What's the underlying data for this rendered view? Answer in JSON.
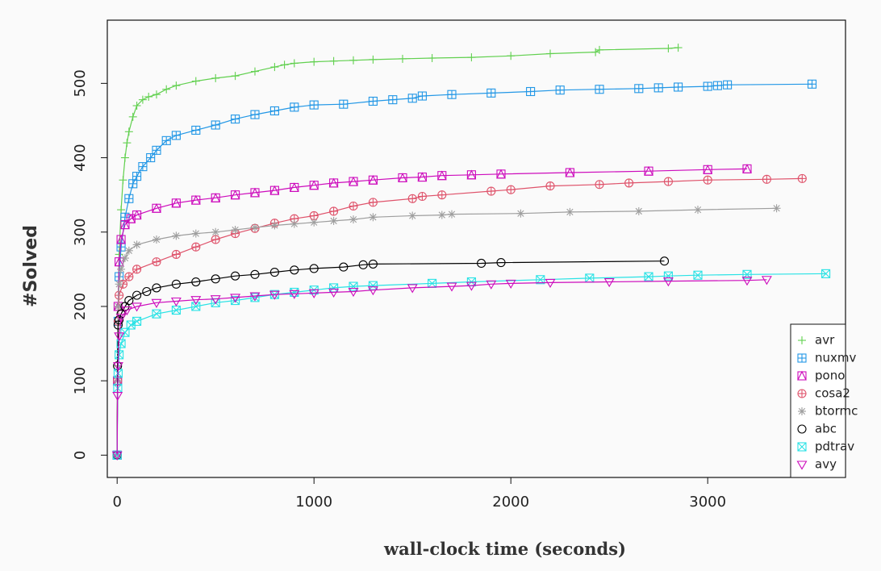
{
  "chart_data": {
    "type": "scatter",
    "xlabel": "wall-clock time (seconds)",
    "ylabel": "#Solved",
    "xlim": [
      -50,
      3700
    ],
    "ylim": [
      -30,
      585
    ],
    "xticks": [
      0,
      1000,
      2000,
      3000
    ],
    "yticks": [
      0,
      100,
      200,
      300,
      400,
      500
    ],
    "grid": false,
    "legend_position": "bottom-right",
    "series": [
      {
        "name": "avr",
        "color": "#61d04f",
        "marker": "plus",
        "points": [
          [
            0,
            0
          ],
          [
            2,
            120
          ],
          [
            5,
            200
          ],
          [
            10,
            270
          ],
          [
            20,
            330
          ],
          [
            30,
            370
          ],
          [
            40,
            400
          ],
          [
            50,
            420
          ],
          [
            60,
            435
          ],
          [
            80,
            455
          ],
          [
            100,
            470
          ],
          [
            130,
            478
          ],
          [
            160,
            482
          ],
          [
            200,
            485
          ],
          [
            250,
            492
          ],
          [
            300,
            497
          ],
          [
            400,
            503
          ],
          [
            500,
            507
          ],
          [
            600,
            510
          ],
          [
            700,
            516
          ],
          [
            800,
            522
          ],
          [
            850,
            525
          ],
          [
            900,
            527
          ],
          [
            1000,
            529
          ],
          [
            1100,
            530
          ],
          [
            1200,
            531
          ],
          [
            1300,
            532
          ],
          [
            1450,
            533
          ],
          [
            1600,
            534
          ],
          [
            1800,
            535
          ],
          [
            2000,
            537
          ],
          [
            2200,
            540
          ],
          [
            2430,
            542
          ],
          [
            2450,
            545
          ],
          [
            2800,
            547
          ],
          [
            2850,
            548
          ]
        ]
      },
      {
        "name": "nuxmv",
        "color": "#2297e6",
        "marker": "boxplus",
        "points": [
          [
            0,
            0
          ],
          [
            2,
            100
          ],
          [
            5,
            180
          ],
          [
            10,
            240
          ],
          [
            20,
            280
          ],
          [
            40,
            320
          ],
          [
            60,
            345
          ],
          [
            80,
            365
          ],
          [
            100,
            375
          ],
          [
            130,
            388
          ],
          [
            170,
            400
          ],
          [
            200,
            410
          ],
          [
            250,
            423
          ],
          [
            300,
            430
          ],
          [
            400,
            437
          ],
          [
            500,
            444
          ],
          [
            600,
            452
          ],
          [
            700,
            458
          ],
          [
            800,
            463
          ],
          [
            900,
            468
          ],
          [
            1000,
            471
          ],
          [
            1150,
            472
          ],
          [
            1300,
            476
          ],
          [
            1400,
            478
          ],
          [
            1500,
            480
          ],
          [
            1550,
            483
          ],
          [
            1700,
            485
          ],
          [
            1900,
            487
          ],
          [
            2100,
            489
          ],
          [
            2250,
            491
          ],
          [
            2450,
            492
          ],
          [
            2650,
            493
          ],
          [
            2750,
            494
          ],
          [
            2850,
            495
          ],
          [
            3000,
            496
          ],
          [
            3050,
            497
          ],
          [
            3100,
            498
          ],
          [
            3530,
            499
          ]
        ]
      },
      {
        "name": "pono",
        "color": "#cd0bbc",
        "marker": "boxtri",
        "points": [
          [
            0,
            0
          ],
          [
            2,
            100
          ],
          [
            5,
            200
          ],
          [
            10,
            260
          ],
          [
            20,
            290
          ],
          [
            40,
            310
          ],
          [
            70,
            318
          ],
          [
            100,
            323
          ],
          [
            200,
            332
          ],
          [
            300,
            339
          ],
          [
            400,
            343
          ],
          [
            500,
            346
          ],
          [
            600,
            350
          ],
          [
            700,
            353
          ],
          [
            800,
            356
          ],
          [
            900,
            360
          ],
          [
            1000,
            363
          ],
          [
            1100,
            366
          ],
          [
            1200,
            368
          ],
          [
            1300,
            370
          ],
          [
            1450,
            373
          ],
          [
            1550,
            374
          ],
          [
            1650,
            376
          ],
          [
            1800,
            377
          ],
          [
            1950,
            378
          ],
          [
            2300,
            380
          ],
          [
            2700,
            382
          ],
          [
            3000,
            384
          ],
          [
            3200,
            385
          ]
        ]
      },
      {
        "name": "cosa2",
        "color": "#df536b",
        "marker": "oplus",
        "points": [
          [
            0,
            0
          ],
          [
            2,
            100
          ],
          [
            5,
            180
          ],
          [
            10,
            215
          ],
          [
            30,
            230
          ],
          [
            60,
            240
          ],
          [
            100,
            250
          ],
          [
            200,
            260
          ],
          [
            300,
            270
          ],
          [
            400,
            280
          ],
          [
            500,
            290
          ],
          [
            600,
            298
          ],
          [
            700,
            305
          ],
          [
            800,
            312
          ],
          [
            900,
            318
          ],
          [
            1000,
            322
          ],
          [
            1100,
            328
          ],
          [
            1200,
            335
          ],
          [
            1300,
            340
          ],
          [
            1500,
            345
          ],
          [
            1550,
            348
          ],
          [
            1650,
            350
          ],
          [
            1900,
            355
          ],
          [
            2000,
            357
          ],
          [
            2200,
            362
          ],
          [
            2450,
            364
          ],
          [
            2600,
            366
          ],
          [
            2800,
            368
          ],
          [
            3000,
            370
          ],
          [
            3300,
            371
          ],
          [
            3480,
            372
          ]
        ]
      },
      {
        "name": "btormc",
        "color": "#9e9e9e",
        "marker": "star",
        "points": [
          [
            0,
            0
          ],
          [
            2,
            100
          ],
          [
            5,
            200
          ],
          [
            10,
            230
          ],
          [
            20,
            250
          ],
          [
            40,
            265
          ],
          [
            60,
            275
          ],
          [
            100,
            283
          ],
          [
            200,
            290
          ],
          [
            300,
            295
          ],
          [
            400,
            298
          ],
          [
            500,
            300
          ],
          [
            600,
            303
          ],
          [
            700,
            306
          ],
          [
            800,
            309
          ],
          [
            900,
            311
          ],
          [
            1000,
            313
          ],
          [
            1100,
            315
          ],
          [
            1200,
            317
          ],
          [
            1300,
            320
          ],
          [
            1500,
            322
          ],
          [
            1650,
            323
          ],
          [
            1700,
            324
          ],
          [
            2050,
            325
          ],
          [
            2300,
            327
          ],
          [
            2650,
            328
          ],
          [
            2950,
            330
          ],
          [
            3350,
            332
          ]
        ]
      },
      {
        "name": "abc",
        "color": "#000000",
        "marker": "circle",
        "points": [
          [
            0,
            0
          ],
          [
            2,
            120
          ],
          [
            5,
            175
          ],
          [
            10,
            182
          ],
          [
            20,
            190
          ],
          [
            40,
            200
          ],
          [
            60,
            208
          ],
          [
            100,
            215
          ],
          [
            150,
            220
          ],
          [
            200,
            225
          ],
          [
            300,
            230
          ],
          [
            400,
            233
          ],
          [
            500,
            237
          ],
          [
            600,
            241
          ],
          [
            700,
            243
          ],
          [
            800,
            246
          ],
          [
            900,
            249
          ],
          [
            1000,
            251
          ],
          [
            1150,
            253
          ],
          [
            1250,
            256
          ],
          [
            1300,
            257
          ],
          [
            1850,
            258
          ],
          [
            1950,
            259
          ],
          [
            2780,
            261
          ]
        ]
      },
      {
        "name": "pdtrav",
        "color": "#28e2e5",
        "marker": "boxtimes",
        "points": [
          [
            0,
            0
          ],
          [
            3,
            90
          ],
          [
            5,
            110
          ],
          [
            10,
            135
          ],
          [
            20,
            150
          ],
          [
            40,
            165
          ],
          [
            70,
            175
          ],
          [
            100,
            180
          ],
          [
            200,
            190
          ],
          [
            300,
            195
          ],
          [
            400,
            200
          ],
          [
            500,
            205
          ],
          [
            600,
            208
          ],
          [
            700,
            212
          ],
          [
            800,
            216
          ],
          [
            900,
            219
          ],
          [
            1000,
            222
          ],
          [
            1100,
            225
          ],
          [
            1200,
            227
          ],
          [
            1300,
            228
          ],
          [
            1600,
            231
          ],
          [
            1800,
            233
          ],
          [
            2150,
            236
          ],
          [
            2400,
            238
          ],
          [
            2700,
            240
          ],
          [
            2800,
            241
          ],
          [
            2950,
            242
          ],
          [
            3200,
            243
          ],
          [
            3600,
            244
          ]
        ]
      },
      {
        "name": "avy",
        "color": "#cd0bbc",
        "marker": "trianglev",
        "points": [
          [
            0,
            0
          ],
          [
            2,
            80
          ],
          [
            5,
            120
          ],
          [
            10,
            160
          ],
          [
            20,
            185
          ],
          [
            50,
            195
          ],
          [
            100,
            200
          ],
          [
            200,
            205
          ],
          [
            300,
            207
          ],
          [
            400,
            209
          ],
          [
            500,
            210
          ],
          [
            600,
            212
          ],
          [
            700,
            214
          ],
          [
            800,
            216
          ],
          [
            900,
            217
          ],
          [
            1000,
            218
          ],
          [
            1100,
            219
          ],
          [
            1200,
            220
          ],
          [
            1300,
            222
          ],
          [
            1500,
            225
          ],
          [
            1700,
            227
          ],
          [
            1800,
            228
          ],
          [
            1900,
            230
          ],
          [
            2000,
            231
          ],
          [
            2200,
            232
          ],
          [
            2500,
            233
          ],
          [
            2800,
            234
          ],
          [
            3200,
            235
          ],
          [
            3300,
            236
          ]
        ]
      }
    ]
  }
}
